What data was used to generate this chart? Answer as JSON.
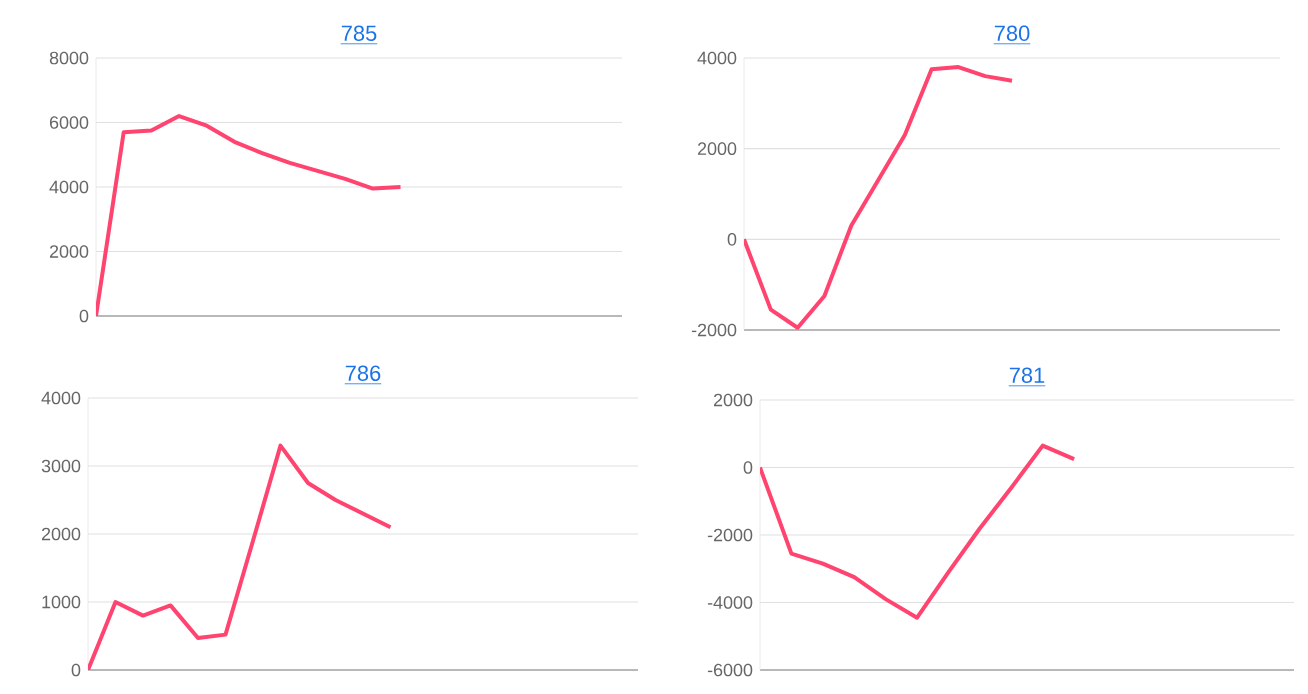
{
  "chart_data": [
    {
      "type": "line",
      "title": "785",
      "categories": [
        null,
        null,
        null,
        null,
        null,
        null,
        null,
        null,
        null,
        null,
        null,
        null,
        null,
        null,
        null,
        null,
        null,
        null,
        null,
        null
      ],
      "series": [
        {
          "color": "#ff4470",
          "values": [
            0,
            5700,
            5750,
            6200,
            5900,
            5400,
            5050,
            4750,
            4500,
            4250,
            3950,
            4000,
            null,
            null,
            null,
            null,
            null,
            null,
            null,
            null
          ]
        }
      ],
      "ylim": [
        0,
        8000
      ],
      "yticks": [
        0,
        2000,
        4000,
        6000,
        8000
      ],
      "grid": "y",
      "tick_labels": "y",
      "marker": "none",
      "line_style": "solid"
    },
    {
      "type": "line",
      "title": "780",
      "categories": [
        null,
        null,
        null,
        null,
        null,
        null,
        null,
        null,
        null,
        null,
        null,
        null,
        null,
        null,
        null,
        null,
        null,
        null,
        null,
        null,
        null
      ],
      "series": [
        {
          "color": "#ff4470",
          "values": [
            0,
            -1550,
            -1950,
            -1250,
            300,
            1300,
            2300,
            3750,
            3800,
            3600,
            3500,
            null,
            null,
            null,
            null,
            null,
            null,
            null,
            null,
            null,
            null
          ]
        }
      ],
      "ylim": [
        -2000,
        4000
      ],
      "yticks": [
        -2000,
        0,
        2000,
        4000
      ],
      "grid": "y",
      "tick_labels": "y",
      "marker": "none",
      "line_style": "solid"
    },
    {
      "type": "line",
      "title": "786",
      "categories": [
        null,
        null,
        null,
        null,
        null,
        null,
        null,
        null,
        null,
        null,
        null,
        null,
        null,
        null,
        null,
        null,
        null,
        null,
        null,
        null,
        null
      ],
      "series": [
        {
          "color": "#ff4470",
          "values": [
            0,
            1000,
            800,
            950,
            470,
            520,
            1900,
            3300,
            2750,
            2500,
            2300,
            2100,
            null,
            null,
            null,
            null,
            null,
            null,
            null,
            null,
            null
          ]
        }
      ],
      "ylim": [
        0,
        4000
      ],
      "yticks": [
        0,
        1000,
        2000,
        3000,
        4000
      ],
      "grid": "y",
      "tick_labels": "y",
      "marker": "none",
      "line_style": "solid"
    },
    {
      "type": "line",
      "title": "781",
      "categories": [
        null,
        null,
        null,
        null,
        null,
        null,
        null,
        null,
        null,
        null,
        null,
        null,
        null,
        null,
        null,
        null,
        null,
        null
      ],
      "series": [
        {
          "color": "#ff4470",
          "values": [
            0,
            -2550,
            -2850,
            -3250,
            -3900,
            -4450,
            -3100,
            -1800,
            -600,
            650,
            250,
            null,
            null,
            null,
            null,
            null,
            null,
            null
          ]
        }
      ],
      "ylim": [
        -6000,
        2000
      ],
      "yticks": [
        -6000,
        -4000,
        -2000,
        0,
        2000
      ],
      "grid": "y",
      "tick_labels": "y",
      "marker": "none",
      "line_style": "solid"
    }
  ]
}
